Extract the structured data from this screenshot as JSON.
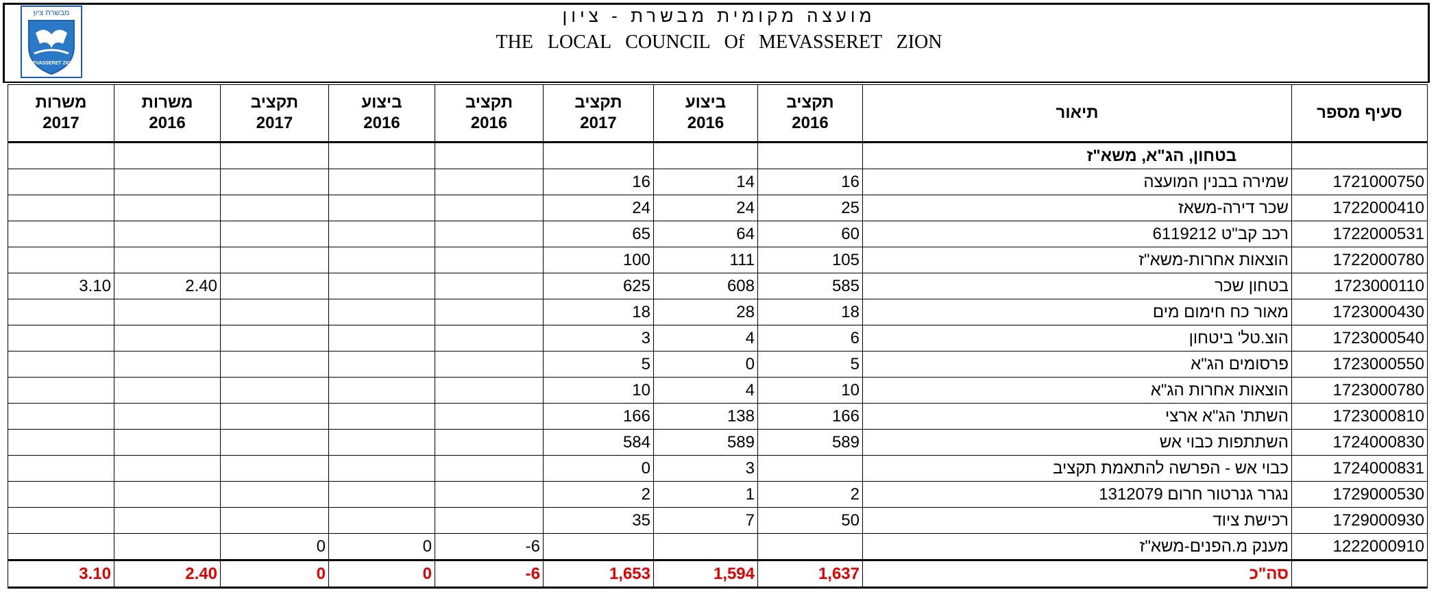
{
  "header": {
    "logo_text_top": "מבשרת ציון",
    "logo_text_bottom": "MEVASSERET ZION",
    "title_hebrew": "מועצה מקומית מבשרת - ציון",
    "title_english": "THE LOCAL COUNCIL Of MEVASSERET ZION"
  },
  "table": {
    "headers": [
      {
        "lines": [
          "סעיף מספר"
        ]
      },
      {
        "lines": [
          "תיאור"
        ]
      },
      {
        "lines": [
          "תקציב",
          "2016"
        ]
      },
      {
        "lines": [
          "ביצוע",
          "2016"
        ]
      },
      {
        "lines": [
          "תקציב",
          "2017"
        ]
      },
      {
        "lines": [
          "תקציב",
          "2016"
        ]
      },
      {
        "lines": [
          "ביצוע",
          "2016"
        ]
      },
      {
        "lines": [
          "תקציב",
          "2017"
        ]
      },
      {
        "lines": [
          "משרות",
          "2016"
        ]
      },
      {
        "lines": [
          "משרות",
          "2017"
        ]
      }
    ],
    "rows": [
      {
        "kind": "section",
        "cells": [
          null,
          "בטחון, הג\"א, משא\"ז",
          null,
          null,
          null,
          null,
          null,
          null,
          null,
          null
        ]
      },
      {
        "cells": [
          "1721000750",
          "שמירה בבנין המועצה",
          "16",
          "14",
          "16",
          null,
          null,
          null,
          null,
          null
        ]
      },
      {
        "cells": [
          "1722000410",
          "שכר דירה-משאז",
          "25",
          "24",
          "24",
          null,
          null,
          null,
          null,
          null
        ]
      },
      {
        "cells": [
          "1722000531",
          "רכב קב\"ט 6119212",
          "60",
          "64",
          "65",
          null,
          null,
          null,
          null,
          null
        ]
      },
      {
        "cells": [
          "1722000780",
          "הוצאות אחרות-משא\"ז",
          "105",
          "111",
          "100",
          null,
          null,
          null,
          null,
          null
        ]
      },
      {
        "cells": [
          "1723000110",
          "בטחון שכר",
          "585",
          "608",
          "625",
          null,
          null,
          null,
          "2.40",
          "3.10"
        ]
      },
      {
        "cells": [
          "1723000430",
          "מאור כח חימום מים",
          "18",
          "28",
          "18",
          null,
          null,
          null,
          null,
          null
        ]
      },
      {
        "cells": [
          "1723000540",
          "הוצ.טל' ביטחון",
          "6",
          "4",
          "3",
          null,
          null,
          null,
          null,
          null
        ]
      },
      {
        "cells": [
          "1723000550",
          "פרסומים הג\"א",
          "5",
          "0",
          "5",
          null,
          null,
          null,
          null,
          null
        ]
      },
      {
        "cells": [
          "1723000780",
          "הוצאות אחרות הג\"א",
          "10",
          "4",
          "10",
          null,
          null,
          null,
          null,
          null
        ]
      },
      {
        "cells": [
          "1723000810",
          "השתת' הג\"א ארצי",
          "166",
          "138",
          "166",
          null,
          null,
          null,
          null,
          null
        ]
      },
      {
        "cells": [
          "1724000830",
          "השתתפות כבוי אש",
          "589",
          "589",
          "584",
          null,
          null,
          null,
          null,
          null
        ]
      },
      {
        "cells": [
          "1724000831",
          "כבוי אש - הפרשה להתאמת תקציב",
          null,
          "3",
          "0",
          null,
          null,
          null,
          null,
          null
        ]
      },
      {
        "cells": [
          "1729000530",
          "נגרר גנרטור חרום 1312079",
          "2",
          "1",
          "2",
          null,
          null,
          null,
          null,
          null
        ]
      },
      {
        "cells": [
          "1729000930",
          "רכישת ציוד",
          "50",
          "7",
          "35",
          null,
          null,
          null,
          null,
          null
        ]
      },
      {
        "cells": [
          "1222000910",
          "מענק מ.הפנים-משא\"ז",
          null,
          null,
          null,
          "-6",
          "0",
          "0",
          null,
          null
        ]
      },
      {
        "kind": "total",
        "cells": [
          null,
          "סה\"כ",
          "1,637",
          "1,594",
          "1,653",
          "-6",
          "0",
          "0",
          "2.40",
          "3.10"
        ]
      }
    ]
  }
}
